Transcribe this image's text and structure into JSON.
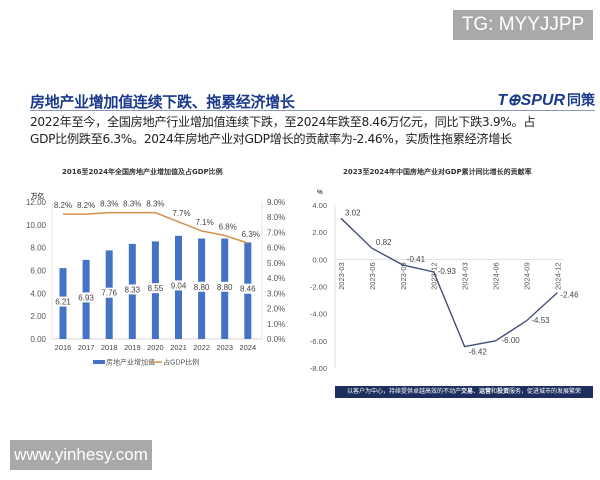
{
  "overlay": {
    "tg_label": "TG: MYYJJPP",
    "site_label": "www.yinhesy.com"
  },
  "header": {
    "title": "房地产业增加值连续下跌、拖累经济增长",
    "logo_text": "T⊕SPUR",
    "logo_cn": "同策"
  },
  "summary": {
    "line1": "2022年至今，全国房地产行业增加值连续下跌，至2024年跌至8.46万亿元，同比下跌3.9%。占",
    "line2": "GDP比例跌至6.3%。2024年房地产业对GDP增长的贡献率为-2.46%，实质性拖累经济增长"
  },
  "footer": {
    "part1": "以客户为中心，持续提供卓越高效的不动产",
    "bold1": "交易",
    "sep1": "、",
    "bold2": "运营",
    "mid": "和",
    "bold3": "投资",
    "part2": "服务，促进城市的发展繁荣"
  },
  "colors": {
    "title_blue": "#1c3a8c",
    "bar_blue": "#4472c4",
    "line_orange": "#d4914a",
    "line_navy": "#44507a",
    "footer_bg": "#1c2f5e"
  },
  "chart_data": [
    {
      "type": "bar",
      "title": "2016至2024年全国房地产业增加值及占GDP比例",
      "ylabel": "万亿",
      "ylim": [
        0,
        12
      ],
      "y_ticks": [
        "0.00",
        "2.00",
        "4.00",
        "6.00",
        "8.00",
        "10.00",
        "12.00"
      ],
      "y2lim": [
        0,
        9
      ],
      "y2_ticks": [
        "0.0%",
        "1.0%",
        "2.0%",
        "3.0%",
        "4.0%",
        "5.0%",
        "6.0%",
        "7.0%",
        "8.0%",
        "9.0%"
      ],
      "categories": [
        "2016",
        "2017",
        "2018",
        "2019",
        "2020",
        "2021",
        "2022",
        "2023",
        "2024"
      ],
      "series": [
        {
          "name": "房地产业增加值",
          "type": "bar",
          "axis": "left",
          "values": [
            6.21,
            6.93,
            7.76,
            8.33,
            8.55,
            9.04,
            8.8,
            8.8,
            8.46
          ],
          "labels": [
            "6.21",
            "6.93",
            "7.76",
            "8.33",
            "8.55",
            "9.04",
            "8.80",
            "8.80",
            "8.46"
          ]
        },
        {
          "name": "占GDP比例",
          "type": "line",
          "axis": "right",
          "values": [
            8.2,
            8.2,
            8.3,
            8.3,
            8.3,
            7.7,
            7.1,
            6.8,
            6.3
          ],
          "labels": [
            "8.2%",
            "8.2%",
            "8.3%",
            "8.3%",
            "8.3%",
            "7.7%",
            "7.1%",
            "6.8%",
            "6.3%"
          ]
        }
      ],
      "legend_position": "bottom",
      "grid": false
    },
    {
      "type": "line",
      "title": "2023至2024年中国房地产业对GDP累计同比增长的贡献率",
      "ylabel": "%",
      "ylim": [
        -8,
        4
      ],
      "y_ticks": [
        "4.00",
        "2.00",
        "0.00",
        "-2.00",
        "-4.00",
        "-6.00",
        "-8.00"
      ],
      "categories": [
        "2023-03",
        "2023-06",
        "2023-09",
        "2023-12",
        "2024-03",
        "2024-06",
        "2024-09",
        "2024-12"
      ],
      "series": [
        {
          "name": "贡献率",
          "values": [
            3.02,
            0.82,
            -0.41,
            -0.93,
            -6.42,
            -6.0,
            -4.53,
            -2.46
          ],
          "labels": [
            "3.02",
            "0.82",
            "-0.41",
            "-0.93",
            "-6.42",
            "-6.00",
            "-4.53",
            "-2.46"
          ]
        }
      ],
      "grid": false
    }
  ]
}
